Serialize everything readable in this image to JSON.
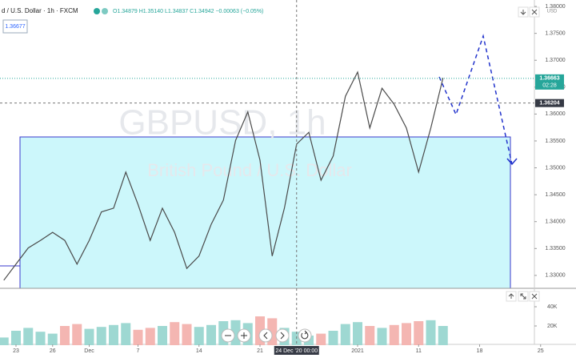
{
  "chart_data": {
    "type": "line",
    "title": "d / U.S. Dollar · 1h · FXCM",
    "ohlc_label": "O1.34879 H1.35140 L1.34837 C1.34942 −0.00063 (−0.05%)",
    "watermark": "GBPUSD, 1h",
    "watermark_subtitle": "British Pound / U.S. Dollar",
    "left_label": "1.36677",
    "currency": "USD",
    "color": "#4a4a4a",
    "grid": false,
    "categories": [
      null,
      "23",
      null,
      null,
      "26",
      null,
      null,
      "Dec",
      null,
      null,
      null,
      "7",
      null,
      null,
      null,
      null,
      "14",
      null,
      null,
      null,
      null,
      "21",
      null,
      null,
      null,
      null,
      null,
      null,
      null,
      "2021",
      null,
      null,
      null,
      null,
      "11",
      null,
      null,
      null,
      null,
      "18",
      null,
      null,
      null,
      null,
      "25"
    ],
    "values": [
      1.3291,
      1.3321,
      1.3351,
      1.3365,
      1.338,
      1.3365,
      1.3321,
      1.3365,
      1.3418,
      1.3425,
      1.3492,
      1.3432,
      1.3365,
      1.3425,
      1.338,
      1.3313,
      1.3336,
      1.3395,
      1.344,
      1.3551,
      1.3604,
      1.3514,
      1.3336,
      1.3425,
      1.3544,
      1.3566,
      1.3477,
      1.3522,
      1.3633,
      1.3678,
      1.3574,
      1.3648,
      1.3618,
      1.3574,
      1.3492,
      1.3574,
      1.3667,
      null,
      null,
      null,
      null,
      null,
      null,
      null,
      null
    ],
    "ylim": [
      1.3276,
      1.3812
    ],
    "yticks": [
      {
        "value": 1.33,
        "label": "1.33000"
      },
      {
        "value": 1.335,
        "label": "1.33500"
      },
      {
        "value": 1.34,
        "label": "1.34000"
      },
      {
        "value": 1.345,
        "label": "1.34500"
      },
      {
        "value": 1.35,
        "label": "1.35000"
      },
      {
        "value": 1.355,
        "label": "1.35500"
      },
      {
        "value": 1.36,
        "label": "1.36000"
      },
      {
        "value": 1.365,
        "label": "1.36500"
      },
      {
        "value": 1.37,
        "label": "1.37000"
      },
      {
        "value": 1.375,
        "label": "1.37500"
      },
      {
        "value": 1.38,
        "label": "1.38000"
      }
    ],
    "last_price": {
      "value": 1.36663,
      "label": "1.36663",
      "countdown": "02:28",
      "color": "#26a69a"
    },
    "crosshair_price": {
      "value": 1.36204,
      "label": "1.36204"
    },
    "crosshair_x_label": "24 Dec '20 00:00",
    "volume": {
      "values": [
        8000,
        15000,
        18000,
        14000,
        12000,
        20000,
        22000,
        17000,
        19000,
        21000,
        23000,
        16000,
        18000,
        20000,
        24000,
        22000,
        19000,
        21000,
        25000,
        26000,
        23000,
        30000,
        28000,
        18000,
        14000,
        10000,
        12000,
        15000,
        22000,
        24000,
        20000,
        18000,
        21000,
        23000,
        25000,
        26000,
        20000,
        null,
        null,
        null,
        null,
        null,
        null,
        null,
        null
      ],
      "ylim": [
        0,
        57500
      ],
      "yticks": [
        {
          "value": 20000,
          "label": "20K"
        },
        {
          "value": 40000,
          "label": "40K"
        }
      ],
      "up_color": "#9ed8d2",
      "down_color": "#f4b6b2"
    }
  }
}
